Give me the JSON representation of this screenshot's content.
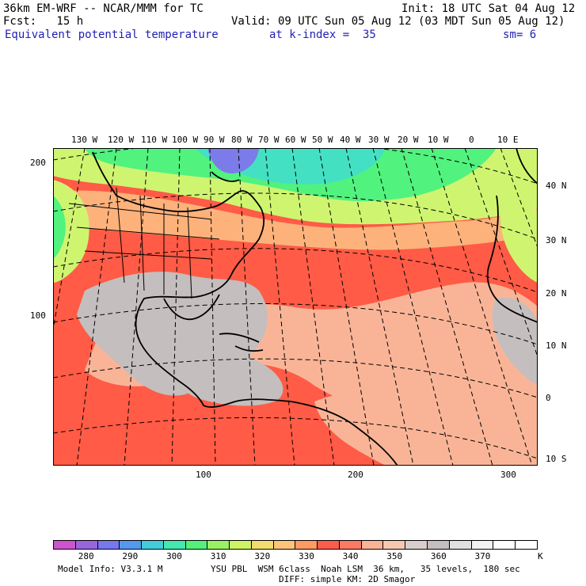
{
  "header": {
    "line1_left": "36km EM-WRF -- NCAR/MMM for TC",
    "line1_right": "Init: 18 UTC Sat 04 Aug 12",
    "line2_left": "Fcst:   15 h",
    "line2_right": "Valid: 09 UTC Sun 05 Aug 12 (03 MDT Sun 05 Aug 12)",
    "line3_field": "Equivalent potential temperature",
    "line3_level": "at k-index =  35",
    "line3_smooth": "sm= 6"
  },
  "map": {
    "lon_labels": [
      "130 W",
      "120 W",
      "110 W",
      "100 W",
      "90 W",
      "80 W",
      "70 W",
      "60 W",
      "50 W",
      "40 W",
      "30 W",
      "20 W",
      "10 W",
      "0",
      "10 E"
    ],
    "lat_labels": [
      "40 N",
      "30 N",
      "20 N",
      "10 N",
      "0",
      "10 S"
    ],
    "grid_x_labels": [
      "100",
      "200",
      "300"
    ],
    "grid_y_labels": [
      "200",
      "100"
    ],
    "colors": {
      "ocean_warm": "#ff5b46",
      "ocean_mid": "#f9b497",
      "gray": "#c4bebe",
      "light_gray": "#e1dfdf",
      "green": "#51f27e",
      "yellow": "#cff570",
      "cyan": "#44e0c4",
      "blue": "#7b7bea",
      "orange": "#fdb27b"
    }
  },
  "colorbar": {
    "colors": [
      "#cc55cc",
      "#9966dd",
      "#7777ee",
      "#5599ee",
      "#44ccdd",
      "#44e8b0",
      "#55f07a",
      "#99f266",
      "#ccf466",
      "#f2dc70",
      "#fdc57a",
      "#fd9b62",
      "#fb5c4c",
      "#fb7a62",
      "#f9b497",
      "#f5c8b2",
      "#d8cfcd",
      "#c4bebe",
      "#e1dfdf",
      "#f2f2f2",
      "#ffffff",
      "#ffffff"
    ],
    "labels": [
      "280",
      "290",
      "300",
      "310",
      "320",
      "330",
      "340",
      "350",
      "360",
      "370"
    ],
    "unit": "K"
  },
  "footer": {
    "model_info": "Model Info: V3.3.1 M",
    "physics_line1": "YSU PBL  WSM 6class  Noah LSM  36 km,   35 levels,  180 sec",
    "physics_line2": "DIFF: simple KM: 2D Smagor"
  }
}
